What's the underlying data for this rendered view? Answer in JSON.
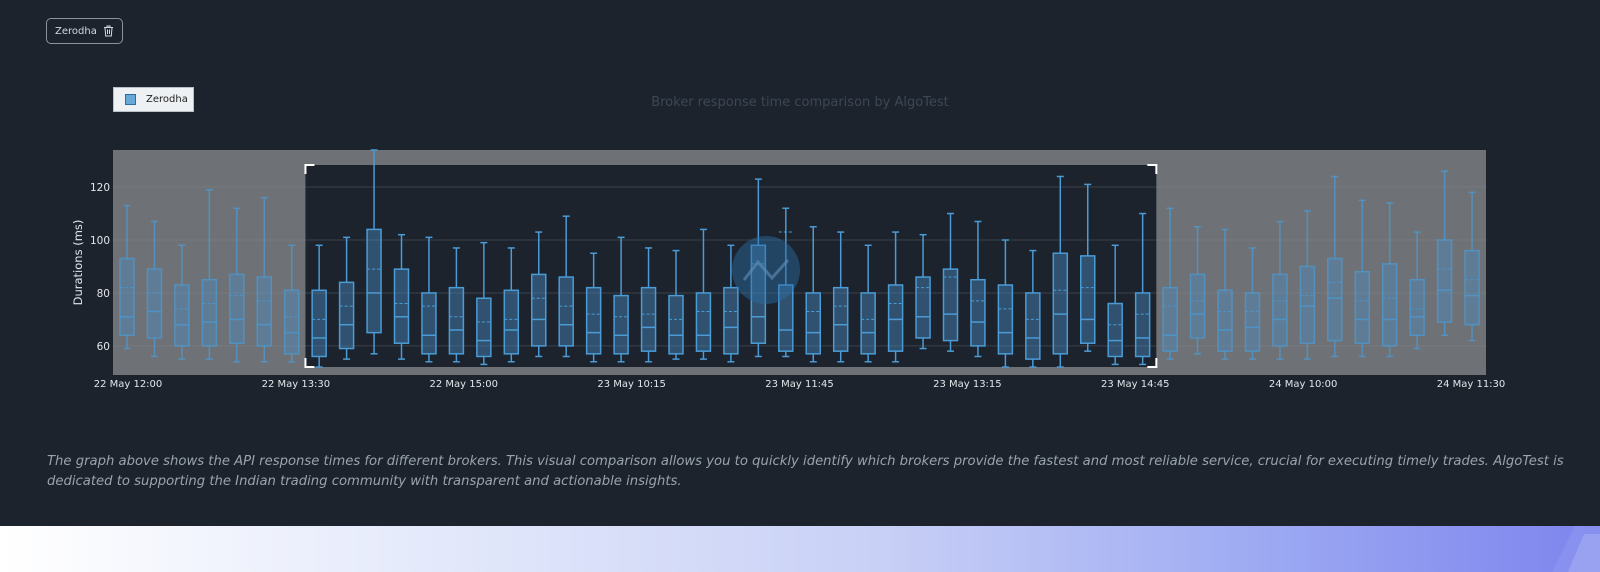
{
  "chip": {
    "label": "Zerodha",
    "icon": "trash-icon"
  },
  "legend": {
    "label": "Zerodha"
  },
  "description": "The graph above shows the API response times for different brokers. This visual comparison allows you to quickly identify which brokers provide the fastest and most reliable service, crucial for executing timely trades. AlgoTest is dedicated to supporting the Indian trading community with transparent and actionable insights.",
  "colors": {
    "box_stroke": "#4a9bd6",
    "box_fill": "#4a8cc4",
    "background": "#1c232d",
    "plot_bg": "#6e7276"
  },
  "chart_data": {
    "type": "box",
    "title": "Broker response time comparison by AlgoTest",
    "ylabel": "Durations (ms)",
    "xlabel": "",
    "ylim": [
      49,
      134
    ],
    "yticks": [
      60,
      80,
      100,
      120
    ],
    "grid": true,
    "legend_position": "top-left",
    "x_tick_labels": [
      "22 May 12:00",
      "22 May 13:30",
      "22 May 15:00",
      "23 May 10:15",
      "23 May 11:45",
      "23 May 13:15",
      "23 May 14:45",
      "24 May 10:00",
      "24 May 11:30"
    ],
    "selection_range_categories": [
      7,
      37
    ],
    "series": [
      {
        "name": "Zerodha",
        "boxes": [
          {
            "min": 59,
            "q1": 64,
            "median": 71,
            "mean": 82,
            "q3": 93,
            "max": 113
          },
          {
            "min": 56,
            "q1": 63,
            "median": 73,
            "mean": 80,
            "q3": 89,
            "max": 107
          },
          {
            "min": 55,
            "q1": 60,
            "median": 68,
            "mean": 74,
            "q3": 83,
            "max": 98
          },
          {
            "min": 55,
            "q1": 60,
            "median": 69,
            "mean": 76,
            "q3": 85,
            "max": 119
          },
          {
            "min": 54,
            "q1": 61,
            "median": 70,
            "mean": 79,
            "q3": 87,
            "max": 112
          },
          {
            "min": 54,
            "q1": 60,
            "median": 68,
            "mean": 77,
            "q3": 86,
            "max": 116
          },
          {
            "min": 54,
            "q1": 57,
            "median": 65,
            "mean": 71,
            "q3": 81,
            "max": 98
          },
          {
            "min": 52,
            "q1": 56,
            "median": 63,
            "mean": 70,
            "q3": 81,
            "max": 98
          },
          {
            "min": 55,
            "q1": 59,
            "median": 68,
            "mean": 75,
            "q3": 84,
            "max": 101
          },
          {
            "min": 57,
            "q1": 65,
            "median": 80,
            "mean": 89,
            "q3": 104,
            "max": 134
          },
          {
            "min": 55,
            "q1": 61,
            "median": 71,
            "mean": 76,
            "q3": 89,
            "max": 102
          },
          {
            "min": 54,
            "q1": 57,
            "median": 64,
            "mean": 75,
            "q3": 80,
            "max": 101
          },
          {
            "min": 54,
            "q1": 57,
            "median": 66,
            "mean": 71,
            "q3": 82,
            "max": 97
          },
          {
            "min": 53,
            "q1": 56,
            "median": 62,
            "mean": 69,
            "q3": 78,
            "max": 99
          },
          {
            "min": 54,
            "q1": 57,
            "median": 66,
            "mean": 70,
            "q3": 81,
            "max": 97
          },
          {
            "min": 56,
            "q1": 60,
            "median": 70,
            "mean": 78,
            "q3": 87,
            "max": 103
          },
          {
            "min": 56,
            "q1": 60,
            "median": 68,
            "mean": 75,
            "q3": 86,
            "max": 109
          },
          {
            "min": 54,
            "q1": 57,
            "median": 65,
            "mean": 72,
            "q3": 82,
            "max": 95
          },
          {
            "min": 54,
            "q1": 57,
            "median": 64,
            "mean": 71,
            "q3": 79,
            "max": 101
          },
          {
            "min": 54,
            "q1": 58,
            "median": 67,
            "mean": 72,
            "q3": 82,
            "max": 97
          },
          {
            "min": 55,
            "q1": 57,
            "median": 64,
            "mean": 70,
            "q3": 79,
            "max": 96
          },
          {
            "min": 55,
            "q1": 58,
            "median": 64,
            "mean": 73,
            "q3": 80,
            "max": 104
          },
          {
            "min": 54,
            "q1": 57,
            "median": 67,
            "mean": 73,
            "q3": 82,
            "max": 98
          },
          {
            "min": 56,
            "q1": 61,
            "median": 71,
            "mean": 91,
            "q3": 98,
            "max": 123
          },
          {
            "min": 56,
            "q1": 58,
            "median": 66,
            "mean": 103,
            "q3": 83,
            "max": 112
          },
          {
            "min": 54,
            "q1": 57,
            "median": 65,
            "mean": 73,
            "q3": 80,
            "max": 105
          },
          {
            "min": 54,
            "q1": 58,
            "median": 68,
            "mean": 75,
            "q3": 82,
            "max": 103
          },
          {
            "min": 54,
            "q1": 57,
            "median": 65,
            "mean": 70,
            "q3": 80,
            "max": 98
          },
          {
            "min": 54,
            "q1": 58,
            "median": 70,
            "mean": 76,
            "q3": 83,
            "max": 103
          },
          {
            "min": 59,
            "q1": 63,
            "median": 71,
            "mean": 82,
            "q3": 86,
            "max": 102
          },
          {
            "min": 58,
            "q1": 62,
            "median": 72,
            "mean": 86,
            "q3": 89,
            "max": 110
          },
          {
            "min": 56,
            "q1": 60,
            "median": 69,
            "mean": 77,
            "q3": 85,
            "max": 107
          },
          {
            "min": 52,
            "q1": 57,
            "median": 65,
            "mean": 74,
            "q3": 83,
            "max": 100
          },
          {
            "min": 52,
            "q1": 55,
            "median": 63,
            "mean": 70,
            "q3": 80,
            "max": 96
          },
          {
            "min": 52,
            "q1": 57,
            "median": 72,
            "mean": 81,
            "q3": 95,
            "max": 124
          },
          {
            "min": 58,
            "q1": 61,
            "median": 70,
            "mean": 82,
            "q3": 94,
            "max": 121
          },
          {
            "min": 53,
            "q1": 56,
            "median": 62,
            "mean": 68,
            "q3": 76,
            "max": 98
          },
          {
            "min": 53,
            "q1": 56,
            "median": 63,
            "mean": 72,
            "q3": 80,
            "max": 110
          },
          {
            "min": 55,
            "q1": 58,
            "median": 64,
            "mean": 75,
            "q3": 82,
            "max": 112
          },
          {
            "min": 57,
            "q1": 63,
            "median": 72,
            "mean": 77,
            "q3": 87,
            "max": 105
          },
          {
            "min": 55,
            "q1": 58,
            "median": 66,
            "mean": 73,
            "q3": 81,
            "max": 104
          },
          {
            "min": 55,
            "q1": 58,
            "median": 67,
            "mean": 73,
            "q3": 80,
            "max": 97
          },
          {
            "min": 55,
            "q1": 60,
            "median": 70,
            "mean": 77,
            "q3": 87,
            "max": 107
          },
          {
            "min": 55,
            "q1": 61,
            "median": 75,
            "mean": 79,
            "q3": 90,
            "max": 111
          },
          {
            "min": 56,
            "q1": 62,
            "median": 78,
            "mean": 84,
            "q3": 93,
            "max": 124
          },
          {
            "min": 56,
            "q1": 61,
            "median": 70,
            "mean": 77,
            "q3": 88,
            "max": 115
          },
          {
            "min": 56,
            "q1": 60,
            "median": 70,
            "mean": 78,
            "q3": 91,
            "max": 114
          },
          {
            "min": 59,
            "q1": 64,
            "median": 71,
            "mean": 74,
            "q3": 85,
            "max": 103
          },
          {
            "min": 64,
            "q1": 69,
            "median": 81,
            "mean": 89,
            "q3": 100,
            "max": 126
          },
          {
            "min": 62,
            "q1": 68,
            "median": 79,
            "mean": 85,
            "q3": 96,
            "max": 118
          }
        ]
      }
    ]
  }
}
